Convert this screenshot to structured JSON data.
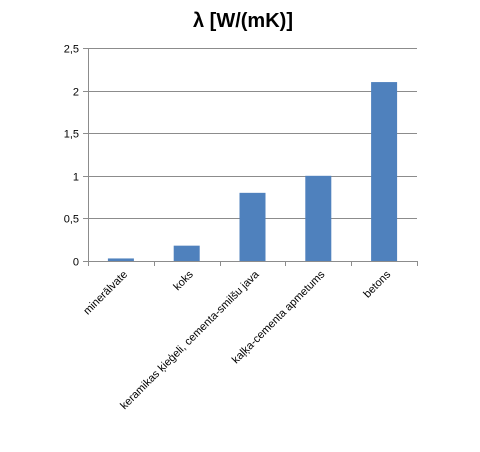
{
  "colors": {
    "bar": "#4f81bd",
    "grid": "#8c8c8c",
    "axis": "#8c8c8c"
  },
  "chart_data": {
    "type": "bar",
    "title": "λ [W/(mK)]",
    "categories": [
      "minerālvate",
      "koks",
      "keramikas ķieģeli, cementa-smilšu java",
      "kaļķa-cementa apmetums",
      "betons"
    ],
    "values": [
      0.03,
      0.18,
      0.8,
      1.0,
      2.1
    ],
    "ylim": [
      0,
      2.5
    ],
    "yticks": [
      "0",
      "0,5",
      "1",
      "1,5",
      "2",
      "2,5"
    ],
    "grid": true,
    "legend": "none"
  }
}
